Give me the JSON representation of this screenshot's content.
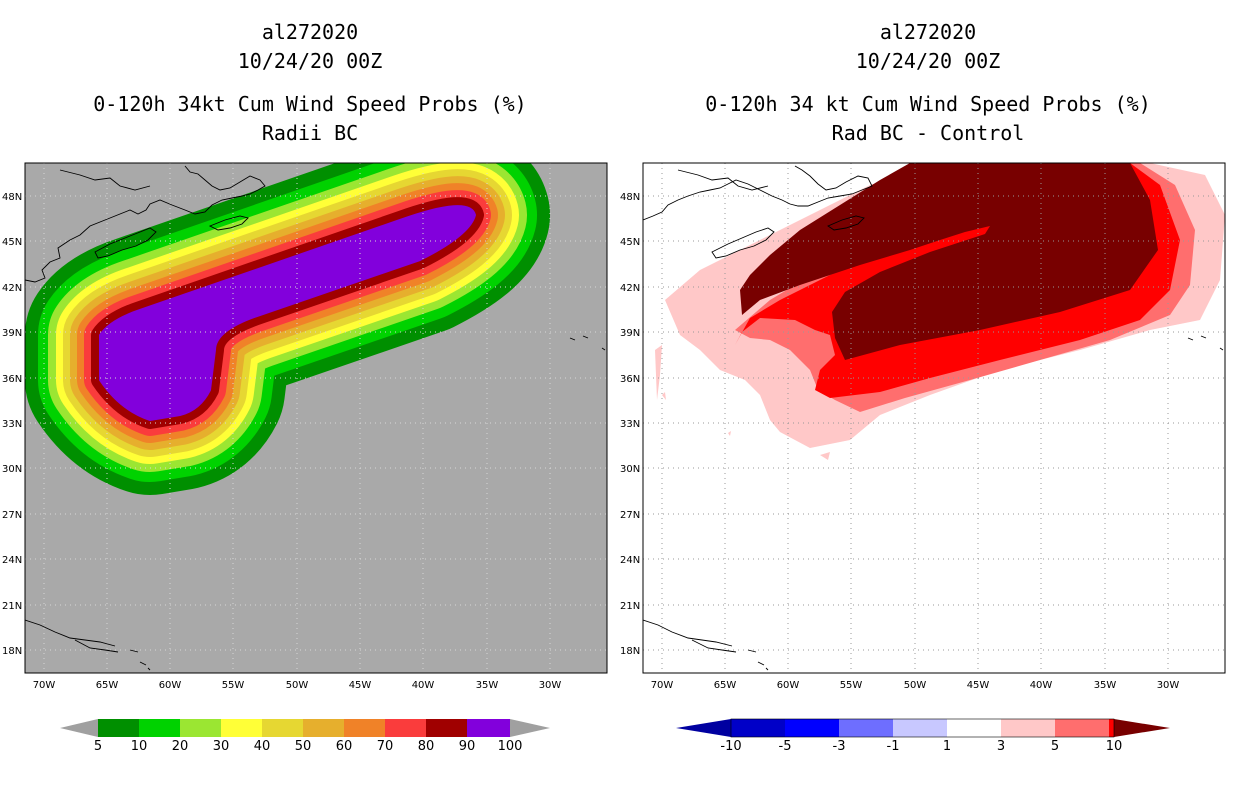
{
  "left_panel": {
    "title": {
      "line1": "al272020",
      "line2": "10/24/20 00Z",
      "line3": "0-120h 34kt Cum Wind Speed Probs (%)",
      "line4": "Radii BC"
    },
    "colorbar": {
      "labels": [
        "5",
        "10",
        "20",
        "30",
        "40",
        "50",
        "60",
        "70",
        "80",
        "90",
        "100"
      ],
      "colors": [
        "#008f00",
        "#00d200",
        "#9be632",
        "#ffff37",
        "#e6d732",
        "#e6af2d",
        "#f08228",
        "#fa3c3c",
        "#a00000",
        "#8200dc"
      ],
      "end_colors": [
        "#a0a0a0",
        "#a0a0a0"
      ]
    }
  },
  "right_panel": {
    "title": {
      "line1": "al272020",
      "line2": "10/24/20 00Z",
      "line3": "0-120h 34 kt Cum Wind Speed Probs (%)",
      "line4": "Rad BC - Control"
    },
    "colorbar": {
      "labels": [
        "-10",
        "-5",
        "-3",
        "-1",
        "1",
        "3",
        "5",
        "10"
      ],
      "colors": [
        "#0000c8",
        "#0000ff",
        "#6e6eff",
        "#c8c8ff",
        "#ffffff",
        "#ffc8c8",
        "#ff6e6e",
        "#ff0000"
      ],
      "end_colors": [
        "#0000a0",
        "#780000"
      ]
    }
  },
  "map_axes": {
    "lat_labels": [
      "48N",
      "45N",
      "42N",
      "39N",
      "36N",
      "33N",
      "30N",
      "27N",
      "24N",
      "21N",
      "18N"
    ],
    "lon_labels": [
      "70W",
      "65W",
      "60W",
      "55W",
      "50W",
      "45W",
      "40W",
      "35W",
      "30W"
    ]
  }
}
